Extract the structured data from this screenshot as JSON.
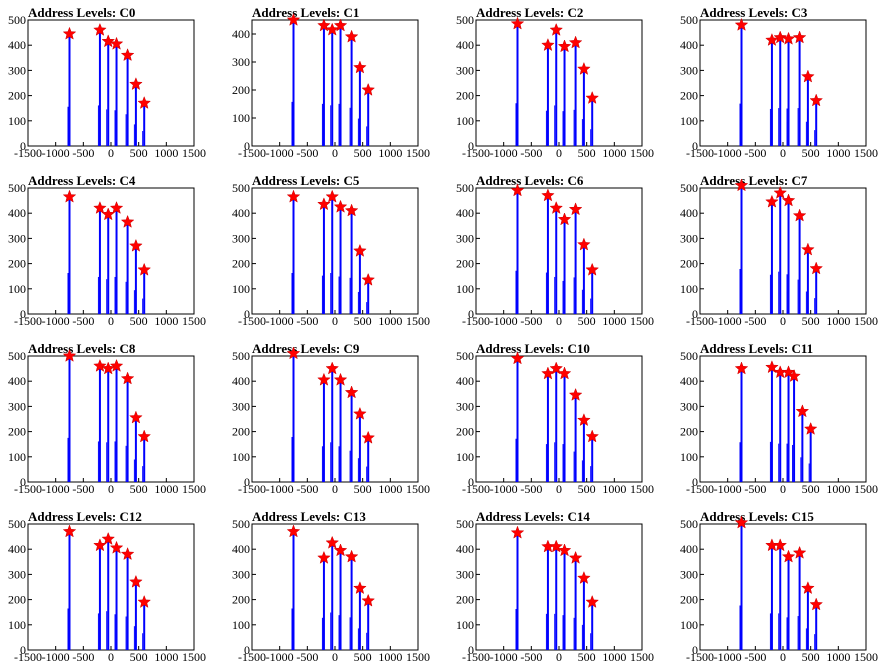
{
  "colors": {
    "bar": "#0000ff",
    "marker": "#ff0000",
    "axis": "#000000"
  },
  "chart_data": [
    {
      "type": "bar",
      "title": "Address Levels: C0",
      "xlim": [
        -1500,
        1500
      ],
      "ylim": [
        0,
        500
      ],
      "x": [
        -750,
        -200,
        -50,
        100,
        300,
        450,
        600
      ],
      "values": [
        445,
        460,
        415,
        405,
        360,
        245,
        170
      ],
      "xticks": [
        -1500,
        -1000,
        -500,
        0,
        500,
        1000,
        1500
      ],
      "yticks": [
        0,
        100,
        200,
        300,
        400,
        500
      ]
    },
    {
      "type": "bar",
      "title": "Address Levels: C1",
      "xlim": [
        -1500,
        1500
      ],
      "ylim": [
        0,
        450
      ],
      "x": [
        -750,
        -200,
        -50,
        100,
        300,
        450,
        600
      ],
      "values": [
        450,
        430,
        415,
        430,
        390,
        280,
        200
      ],
      "xticks": [
        -1500,
        -1000,
        -500,
        0,
        500,
        1000,
        1500
      ],
      "yticks": [
        0,
        100,
        200,
        300,
        400
      ]
    },
    {
      "type": "bar",
      "title": "Address Levels: C2",
      "xlim": [
        -1500,
        1500
      ],
      "ylim": [
        0,
        500
      ],
      "x": [
        -750,
        -200,
        -50,
        100,
        300,
        450,
        600
      ],
      "values": [
        485,
        400,
        460,
        395,
        410,
        305,
        190
      ],
      "xticks": [
        -1500,
        -1000,
        -500,
        0,
        500,
        1000,
        1500
      ],
      "yticks": [
        0,
        100,
        200,
        300,
        400,
        500
      ]
    },
    {
      "type": "bar",
      "title": "Address Levels: C3",
      "xlim": [
        -1500,
        1500
      ],
      "ylim": [
        0,
        500
      ],
      "x": [
        -750,
        -200,
        -50,
        100,
        300,
        450,
        600
      ],
      "values": [
        480,
        420,
        430,
        425,
        430,
        275,
        180
      ],
      "xticks": [
        -1500,
        -1000,
        -500,
        0,
        500,
        1000,
        1500
      ],
      "yticks": [
        0,
        100,
        200,
        300,
        400,
        500
      ]
    },
    {
      "type": "bar",
      "title": "Address Levels: C4",
      "xlim": [
        -1500,
        1500
      ],
      "ylim": [
        0,
        500
      ],
      "x": [
        -750,
        -200,
        -50,
        100,
        300,
        450,
        600
      ],
      "values": [
        465,
        420,
        395,
        420,
        365,
        270,
        175
      ],
      "xticks": [
        -1500,
        -1000,
        -500,
        0,
        500,
        1000,
        1500
      ],
      "yticks": [
        0,
        100,
        200,
        300,
        400,
        500
      ]
    },
    {
      "type": "bar",
      "title": "Address Levels: C5",
      "xlim": [
        -1500,
        1500
      ],
      "ylim": [
        0,
        500
      ],
      "x": [
        -750,
        -200,
        -50,
        100,
        300,
        450,
        600
      ],
      "values": [
        465,
        435,
        465,
        425,
        410,
        250,
        135
      ],
      "xticks": [
        -1500,
        -1000,
        -500,
        0,
        500,
        1000,
        1500
      ],
      "yticks": [
        0,
        100,
        200,
        300,
        400,
        500
      ]
    },
    {
      "type": "bar",
      "title": "Address Levels: C6",
      "xlim": [
        -1500,
        1500
      ],
      "ylim": [
        0,
        500
      ],
      "x": [
        -750,
        -200,
        -50,
        100,
        300,
        450,
        600
      ],
      "values": [
        490,
        470,
        420,
        375,
        415,
        275,
        175
      ],
      "xticks": [
        -1500,
        -1000,
        -500,
        0,
        500,
        1000,
        1500
      ],
      "yticks": [
        0,
        100,
        200,
        300,
        400,
        500
      ]
    },
    {
      "type": "bar",
      "title": "Address Levels: C7",
      "xlim": [
        -1500,
        1500
      ],
      "ylim": [
        0,
        500
      ],
      "x": [
        -750,
        -200,
        -50,
        100,
        300,
        450,
        600
      ],
      "values": [
        510,
        445,
        480,
        450,
        390,
        255,
        180
      ],
      "xticks": [
        -1500,
        -1000,
        -500,
        0,
        500,
        1000,
        1500
      ],
      "yticks": [
        0,
        100,
        200,
        300,
        400,
        500
      ]
    },
    {
      "type": "bar",
      "title": "Address Levels: C8",
      "xlim": [
        -1500,
        1500
      ],
      "ylim": [
        0,
        500
      ],
      "x": [
        -750,
        -200,
        -50,
        100,
        300,
        450,
        600
      ],
      "values": [
        500,
        460,
        450,
        460,
        410,
        255,
        180
      ],
      "xticks": [
        -1500,
        -1000,
        -500,
        0,
        500,
        1000,
        1500
      ],
      "yticks": [
        0,
        100,
        200,
        300,
        400,
        500
      ]
    },
    {
      "type": "bar",
      "title": "Address Levels: C9",
      "xlim": [
        -1500,
        1500
      ],
      "ylim": [
        0,
        500
      ],
      "x": [
        -750,
        -200,
        -50,
        100,
        300,
        450,
        600
      ],
      "values": [
        510,
        405,
        450,
        405,
        355,
        270,
        175
      ],
      "xticks": [
        -1500,
        -1000,
        -500,
        0,
        500,
        1000,
        1500
      ],
      "yticks": [
        0,
        100,
        200,
        300,
        400,
        500
      ]
    },
    {
      "type": "bar",
      "title": "Address Levels: C10",
      "xlim": [
        -1500,
        1500
      ],
      "ylim": [
        0,
        500
      ],
      "x": [
        -750,
        -200,
        -50,
        100,
        300,
        450,
        600
      ],
      "values": [
        490,
        430,
        450,
        430,
        345,
        245,
        180
      ],
      "xticks": [
        -1500,
        -1000,
        -500,
        0,
        500,
        1000,
        1500
      ],
      "yticks": [
        0,
        100,
        200,
        300,
        400,
        500
      ]
    },
    {
      "type": "bar",
      "title": "Address Levels: C11",
      "xlim": [
        -1500,
        1500
      ],
      "ylim": [
        0,
        500
      ],
      "x": [
        -750,
        -200,
        -50,
        100,
        200,
        350,
        500
      ],
      "values": [
        450,
        455,
        435,
        435,
        420,
        280,
        210
      ],
      "xticks": [
        -1500,
        -1000,
        -500,
        0,
        500,
        1000,
        1500
      ],
      "yticks": [
        0,
        100,
        200,
        300,
        400,
        500
      ]
    },
    {
      "type": "bar",
      "title": "Address Levels: C12",
      "xlim": [
        -1500,
        1500
      ],
      "ylim": [
        0,
        500
      ],
      "x": [
        -750,
        -200,
        -50,
        100,
        300,
        450,
        600
      ],
      "values": [
        470,
        415,
        440,
        405,
        380,
        270,
        190
      ],
      "xticks": [
        -1500,
        -1000,
        -500,
        0,
        500,
        1000,
        1500
      ],
      "yticks": [
        0,
        100,
        200,
        300,
        400,
        500
      ]
    },
    {
      "type": "bar",
      "title": "Address Levels: C13",
      "xlim": [
        -1500,
        1500
      ],
      "ylim": [
        0,
        500
      ],
      "x": [
        -750,
        -200,
        -50,
        100,
        300,
        450,
        600
      ],
      "values": [
        470,
        365,
        425,
        395,
        370,
        245,
        195
      ],
      "xticks": [
        -1500,
        -1000,
        -500,
        0,
        500,
        1000,
        1500
      ],
      "yticks": [
        0,
        100,
        200,
        300,
        400,
        500
      ]
    },
    {
      "type": "bar",
      "title": "Address Levels: C14",
      "xlim": [
        -1500,
        1500
      ],
      "ylim": [
        0,
        500
      ],
      "x": [
        -750,
        -200,
        -50,
        100,
        300,
        450,
        600
      ],
      "values": [
        465,
        410,
        410,
        395,
        365,
        285,
        190
      ],
      "xticks": [
        -1500,
        -1000,
        -500,
        0,
        500,
        1000,
        1500
      ],
      "yticks": [
        0,
        100,
        200,
        300,
        400,
        500
      ]
    },
    {
      "type": "bar",
      "title": "Address Levels: C15",
      "xlim": [
        -1500,
        1500
      ],
      "ylim": [
        0,
        500
      ],
      "x": [
        -750,
        -200,
        -50,
        100,
        300,
        450,
        600
      ],
      "values": [
        505,
        415,
        415,
        370,
        385,
        245,
        180
      ],
      "xticks": [
        -1500,
        -1000,
        -500,
        0,
        500,
        1000,
        1500
      ],
      "yticks": [
        0,
        100,
        200,
        300,
        400,
        500
      ]
    }
  ]
}
